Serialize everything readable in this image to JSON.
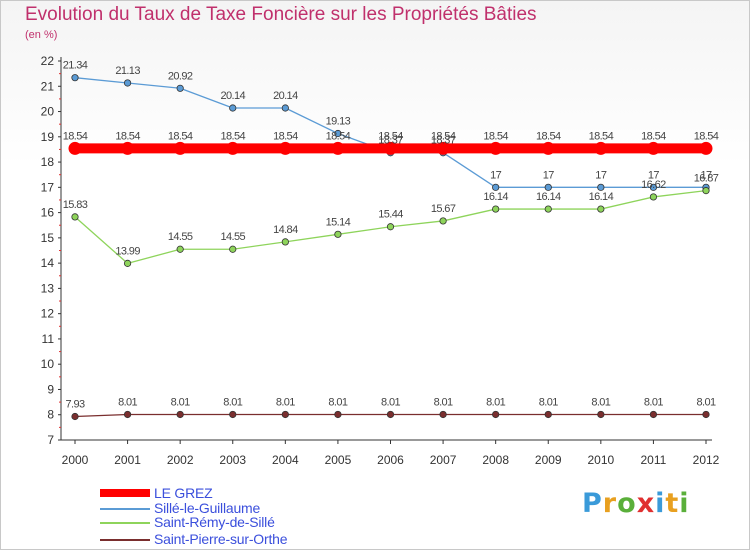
{
  "header": {
    "title": "Evolution du Taux de Taxe Foncière sur les Propriétés Bâties",
    "unit": "(en %)"
  },
  "logo": {
    "text": "Proxiti",
    "letter_colors": [
      "#3a9ad9",
      "#e8a020",
      "#5aaf3a",
      "#e03030",
      "#3a9ad9",
      "#e8a020",
      "#5aaf3a"
    ]
  },
  "chart_data": {
    "type": "line",
    "x": [
      "2000",
      "2001",
      "2002",
      "2003",
      "2004",
      "2005",
      "2006",
      "2007",
      "2008",
      "2009",
      "2010",
      "2011",
      "2012"
    ],
    "ylim": [
      7,
      22
    ],
    "yticks": [
      "7",
      "8",
      "9",
      "10",
      "11",
      "12",
      "13",
      "14",
      "15",
      "16",
      "17",
      "18",
      "19",
      "20",
      "21",
      "22"
    ],
    "grid": false,
    "legend_position": "bottom-left",
    "series": [
      {
        "name": "LE GREZ",
        "color": "#ff0000",
        "values": [
          18.54,
          18.54,
          18.54,
          18.54,
          18.54,
          18.54,
          18.54,
          18.54,
          18.54,
          18.54,
          18.54,
          18.54,
          18.54
        ],
        "labels": [
          "18.54",
          "18.54",
          "18.54",
          "18.54",
          "18.54",
          "18.54",
          "18.54",
          "18.54",
          "18.54",
          "18.54",
          "18.54",
          "18.54",
          "18.54"
        ]
      },
      {
        "name": "Sillé-le-Guillaume",
        "color": "#5b9bd5",
        "values": [
          21.34,
          21.13,
          20.92,
          20.14,
          20.14,
          19.13,
          18.37,
          18.37,
          17,
          17,
          17,
          17,
          17
        ],
        "labels": [
          "21.34",
          "21.13",
          "20.92",
          "20.14",
          "20.14",
          "19.13",
          "18.37",
          "18.37",
          "17",
          "17",
          "17",
          "17",
          "17"
        ]
      },
      {
        "name": "Saint-Rémy-de-Sillé",
        "color": "#8ed45b",
        "values": [
          15.83,
          13.99,
          14.55,
          14.55,
          14.84,
          15.14,
          15.44,
          15.67,
          16.14,
          16.14,
          16.14,
          16.62,
          16.87
        ],
        "labels": [
          "15.83",
          "13.99",
          "14.55",
          "14.55",
          "14.84",
          "15.14",
          "15.44",
          "15.67",
          "16.14",
          "16.14",
          "16.14",
          "16.62",
          "16.87"
        ]
      },
      {
        "name": "Saint-Pierre-sur-Orthe",
        "color": "#7a2e2e",
        "values": [
          7.93,
          8.01,
          8.01,
          8.01,
          8.01,
          8.01,
          8.01,
          8.01,
          8.01,
          8.01,
          8.01,
          8.01,
          8.01
        ],
        "labels": [
          "7.93",
          "8.01",
          "8.01",
          "8.01",
          "8.01",
          "8.01",
          "8.01",
          "8.01",
          "8.01",
          "8.01",
          "8.01",
          "8.01",
          "8.01"
        ]
      }
    ]
  }
}
